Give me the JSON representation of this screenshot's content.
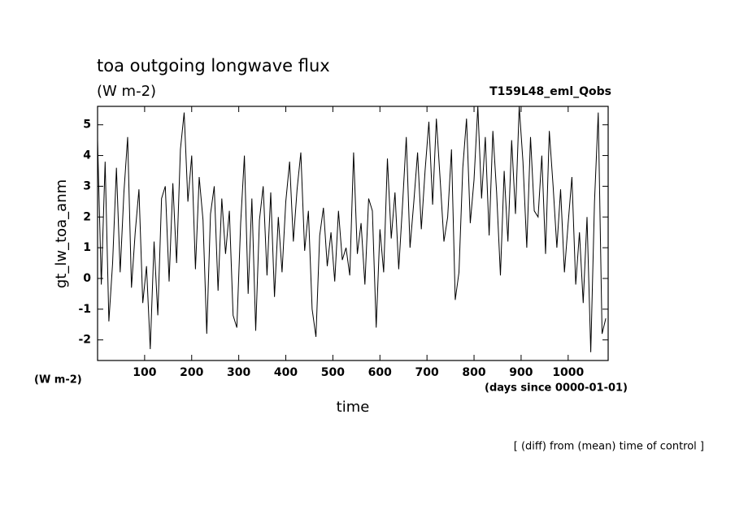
{
  "chart_data": {
    "type": "line",
    "title": "toa outgoing longwave flux",
    "subtitle": "(W m-2)",
    "run_label": "T159L48_eml_Qobs",
    "y_label": "gt_lw_toa_anm",
    "y_unit": "(W m-2)",
    "x_label": "time",
    "x_unit": "(days since 0000-01-01)",
    "note": "[ (diff) from (mean) time of control ]",
    "xlim": [
      0,
      1085
    ],
    "ylim": [
      -2.67,
      5.6
    ],
    "xticks": [
      100,
      200,
      300,
      400,
      500,
      600,
      700,
      800,
      900,
      1000
    ],
    "yticks": [
      -2,
      -1,
      0,
      1,
      2,
      3,
      4,
      5
    ],
    "x": [
      0,
      8,
      16,
      24,
      32,
      40,
      48,
      56,
      64,
      72,
      80,
      88,
      96,
      104,
      112,
      120,
      128,
      136,
      144,
      152,
      160,
      168,
      176,
      184,
      192,
      200,
      208,
      216,
      224,
      232,
      240,
      248,
      256,
      264,
      272,
      280,
      288,
      296,
      304,
      312,
      320,
      328,
      336,
      344,
      352,
      360,
      368,
      376,
      384,
      392,
      400,
      408,
      416,
      424,
      432,
      440,
      448,
      456,
      464,
      472,
      480,
      488,
      496,
      504,
      512,
      520,
      528,
      536,
      544,
      552,
      560,
      568,
      576,
      584,
      592,
      600,
      608,
      616,
      624,
      632,
      640,
      648,
      656,
      664,
      672,
      680,
      688,
      696,
      704,
      712,
      720,
      728,
      736,
      744,
      752,
      760,
      768,
      776,
      784,
      792,
      800,
      808,
      816,
      824,
      832,
      840,
      848,
      856,
      864,
      872,
      880,
      888,
      896,
      904,
      912,
      920,
      928,
      936,
      944,
      952,
      960,
      968,
      976,
      984,
      992,
      1000,
      1008,
      1016,
      1024,
      1032,
      1040,
      1048,
      1056,
      1064,
      1072,
      1080
    ],
    "series": [
      {
        "color": "#000000",
        "values": [
          4.5,
          -0.2,
          3.8,
          -1.4,
          0.5,
          3.6,
          0.2,
          2.8,
          4.6,
          -0.3,
          1.5,
          2.9,
          -0.8,
          0.4,
          -2.3,
          1.2,
          -1.2,
          2.6,
          3.0,
          -0.1,
          3.1,
          0.5,
          4.2,
          5.4,
          2.5,
          4.0,
          0.3,
          3.3,
          1.9,
          -1.8,
          2.1,
          3.0,
          -0.4,
          2.6,
          0.8,
          2.2,
          -1.2,
          -1.6,
          1.8,
          4.0,
          -0.5,
          2.6,
          -1.7,
          1.9,
          3.0,
          0.1,
          2.8,
          -0.6,
          2.0,
          0.2,
          2.5,
          3.8,
          1.2,
          2.9,
          4.1,
          0.9,
          2.2,
          -1.0,
          -1.9,
          1.4,
          2.3,
          0.4,
          1.5,
          -0.1,
          2.2,
          0.6,
          1.0,
          0.1,
          4.1,
          0.8,
          1.8,
          -0.2,
          2.6,
          2.2,
          -1.6,
          1.6,
          0.2,
          3.9,
          1.3,
          2.8,
          0.3,
          2.4,
          4.6,
          1.0,
          2.5,
          4.1,
          1.6,
          3.5,
          5.1,
          2.4,
          5.2,
          3.2,
          1.2,
          2.0,
          4.2,
          -0.7,
          0.2,
          3.6,
          5.2,
          1.8,
          3.2,
          5.6,
          2.6,
          4.6,
          1.4,
          4.8,
          2.8,
          0.1,
          3.5,
          1.2,
          4.5,
          2.1,
          5.6,
          3.8,
          1.0,
          4.6,
          2.2,
          2.0,
          4.0,
          0.8,
          4.8,
          3.0,
          1.0,
          2.9,
          0.2,
          1.8,
          3.3,
          -0.2,
          1.5,
          -0.8,
          2.0,
          -2.4,
          2.5,
          5.4,
          -1.8,
          -1.3
        ]
      }
    ]
  }
}
